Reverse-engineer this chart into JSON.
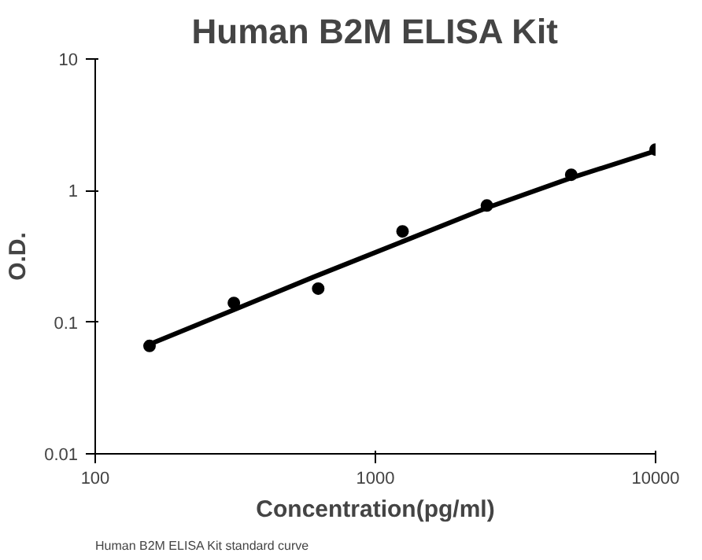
{
  "chart_data": {
    "type": "scatter",
    "title": "Human B2M ELISA Kit",
    "xlabel": "Concentration(pg/ml)",
    "ylabel": "O.D.",
    "log": "xy",
    "xlim": [
      100,
      10000
    ],
    "ylim": [
      0.01,
      10
    ],
    "xticks": [
      100,
      1000,
      10000
    ],
    "yticks": [
      0.01,
      0.1,
      1,
      10
    ],
    "grid": false,
    "annotations": [
      "Human B2M ELISA Kit standard curve"
    ],
    "series": [
      {
        "marker": "circle",
        "color": "#000000",
        "x": [
          156.25,
          312.5,
          625,
          1250,
          2500,
          5000,
          10000
        ],
        "values": [
          0.066,
          0.14,
          0.18,
          0.49,
          0.77,
          1.32,
          2.05
        ]
      },
      {
        "type": "line",
        "marker": "none",
        "color": "#000000",
        "line_style": "solid",
        "x": [
          156.25,
          300,
          600,
          1250,
          2500,
          5000,
          10000
        ],
        "values": [
          0.068,
          0.12,
          0.22,
          0.41,
          0.74,
          1.25,
          2.0
        ]
      }
    ]
  }
}
